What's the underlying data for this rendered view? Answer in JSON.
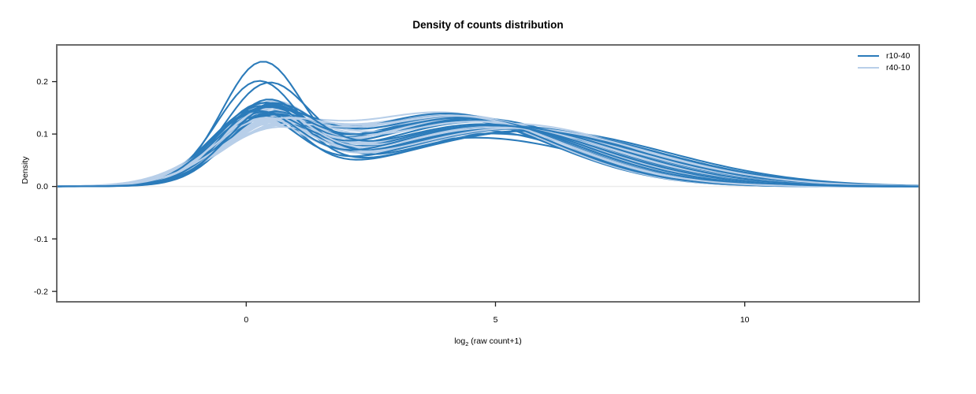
{
  "title": "Density of counts distribution",
  "chart_data": {
    "type": "line",
    "title": "Density of counts distribution",
    "ylabel": "Density",
    "xlabel_parts": {
      "pre": "log",
      "sub": "2",
      "post": " (raw count+1)"
    },
    "xlim": [
      -3.8,
      13.5
    ],
    "ylim": [
      -0.22,
      0.27
    ],
    "x_ticks": [
      "0",
      "5",
      "10"
    ],
    "x_tick_values": [
      0,
      5,
      10
    ],
    "y_ticks": [
      "0.2",
      "0.1",
      "0.0",
      "-0.1",
      "-0.2"
    ],
    "y_tick_values": [
      0.2,
      0.1,
      0.0,
      -0.1,
      -0.2
    ],
    "grid": "horizontal reference line at y=0 only",
    "legend_position": "top-right",
    "zero_line_color": "#ebebeb",
    "box_color": "#6b6b6b",
    "curve_model": "density(x) = w1*Normal(mu1,s1) + (1-w1)*Normal(mu2,s2); params per curve = [w1, mu1, s1, mu2, s2]; bimodal: sharp peak near x=0.3 (height 0.10-0.23), broad bump near x=4.5-5.5 (height 0.10-0.15), tails to 0 by x=13",
    "series": [
      {
        "name": "r10-40",
        "color": "#2b7bba",
        "curves": [
          [
            0.44,
            0.3,
            0.8,
            4.6,
            2.4
          ],
          [
            0.38,
            0.22,
            0.82,
            4.9,
            2.45
          ],
          [
            0.37,
            0.4,
            0.85,
            4.4,
            2.3
          ],
          [
            0.3,
            0.35,
            0.88,
            5.2,
            2.5
          ],
          [
            0.29,
            0.18,
            0.92,
            4.1,
            2.2
          ],
          [
            0.31,
            0.5,
            0.86,
            5.6,
            2.6
          ],
          [
            0.27,
            0.28,
            0.9,
            4.7,
            2.35
          ],
          [
            0.28,
            0.45,
            0.84,
            5.0,
            2.55
          ],
          [
            0.26,
            0.15,
            0.95,
            4.3,
            2.25
          ],
          [
            0.3,
            0.55,
            0.88,
            5.4,
            2.45
          ],
          [
            0.27,
            0.32,
            0.93,
            3.9,
            2.15
          ],
          [
            0.29,
            0.2,
            0.85,
            5.8,
            2.65
          ],
          [
            0.25,
            0.42,
            0.9,
            4.6,
            2.3
          ],
          [
            0.31,
            0.27,
            0.87,
            5.1,
            2.5
          ],
          [
            0.26,
            0.5,
            0.94,
            4.2,
            2.2
          ],
          [
            0.28,
            0.12,
            0.89,
            5.5,
            2.6
          ],
          [
            0.3,
            0.38,
            0.83,
            4.8,
            2.4
          ],
          [
            0.25,
            0.3,
            0.96,
            4.0,
            2.15
          ],
          [
            0.29,
            0.47,
            0.86,
            5.3,
            2.55
          ],
          [
            0.27,
            0.22,
            0.91,
            4.5,
            2.3
          ],
          [
            0.31,
            0.35,
            0.84,
            5.7,
            2.6
          ],
          [
            0.26,
            0.4,
            0.92,
            4.35,
            2.25
          ],
          [
            0.28,
            0.17,
            0.88,
            5.0,
            2.45
          ],
          [
            0.3,
            0.52,
            0.9,
            4.75,
            2.35
          ]
        ]
      },
      {
        "name": "r40-10",
        "color": "#b8cfe9",
        "curves": [
          [
            0.32,
            0.45,
            0.92,
            4.7,
            2.4
          ],
          [
            0.26,
            0.3,
            1.05,
            4.4,
            2.3
          ],
          [
            0.28,
            0.55,
            0.98,
            5.1,
            2.5
          ],
          [
            0.24,
            0.2,
            1.1,
            4.0,
            2.2
          ],
          [
            0.27,
            0.4,
            1.0,
            5.4,
            2.55
          ],
          [
            0.25,
            0.6,
            1.08,
            4.6,
            2.35
          ],
          [
            0.29,
            0.25,
            0.95,
            4.9,
            2.45
          ],
          [
            0.23,
            0.48,
            1.12,
            4.2,
            2.25
          ],
          [
            0.28,
            0.35,
            1.02,
            5.6,
            2.6
          ],
          [
            0.25,
            0.15,
            1.06,
            4.5,
            2.3
          ],
          [
            0.27,
            0.52,
            0.97,
            5.0,
            2.5
          ],
          [
            0.24,
            0.38,
            1.12,
            3.9,
            2.15
          ],
          [
            0.3,
            0.28,
            0.94,
            5.2,
            2.55
          ],
          [
            0.25,
            0.58,
            1.05,
            4.35,
            2.25
          ],
          [
            0.28,
            0.2,
            1.0,
            5.5,
            2.6
          ],
          [
            0.24,
            0.44,
            1.1,
            4.1,
            2.2
          ],
          [
            0.29,
            0.33,
            0.96,
            4.8,
            2.45
          ],
          [
            0.25,
            0.5,
            1.07,
            5.3,
            2.5
          ],
          [
            0.27,
            0.24,
            1.01,
            4.55,
            2.35
          ],
          [
            0.23,
            0.42,
            1.14,
            4.25,
            2.28
          ],
          [
            0.3,
            0.36,
            0.93,
            5.05,
            2.48
          ],
          [
            0.26,
            0.55,
            1.04,
            4.65,
            2.38
          ],
          [
            0.28,
            0.3,
            0.99,
            5.45,
            2.58
          ],
          [
            0.25,
            0.47,
            1.08,
            4.15,
            2.22
          ]
        ]
      }
    ]
  }
}
